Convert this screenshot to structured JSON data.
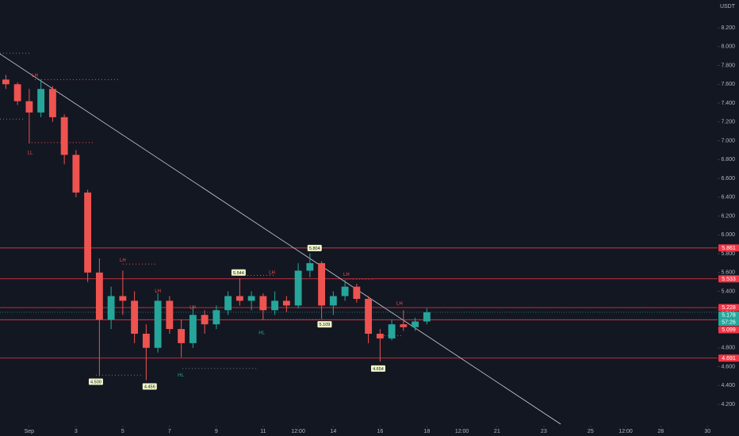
{
  "chart_data": {
    "type": "candlestick",
    "currency": "USDT",
    "x": [
      0,
      0.5,
      1,
      1.5,
      2,
      2.5,
      3,
      3.5,
      4,
      4.5,
      5,
      5.5,
      6,
      6.5,
      7,
      7.5,
      8,
      8.5,
      9,
      9.5,
      10,
      10.5,
      11,
      11.5,
      12,
      12.5,
      13,
      13.5,
      14,
      14.5,
      15,
      15.5,
      16,
      16.5,
      17,
      17.5,
      18
    ],
    "open": [
      7.65,
      7.6,
      7.42,
      7.3,
      7.55,
      7.25,
      6.85,
      6.45,
      5.6,
      5.1,
      5.35,
      5.3,
      4.95,
      4.8,
      5.3,
      5.0,
      4.85,
      5.15,
      5.05,
      5.2,
      5.35,
      5.3,
      5.35,
      5.2,
      5.3,
      5.25,
      5.62,
      5.7,
      5.25,
      5.35,
      5.45,
      5.32,
      4.95,
      4.9,
      5.05,
      5.02,
      5.08
    ],
    "high": [
      7.7,
      7.62,
      7.55,
      7.65,
      7.58,
      7.28,
      6.9,
      6.48,
      5.75,
      5.45,
      5.62,
      5.4,
      5.05,
      5.38,
      5.35,
      5.1,
      5.25,
      5.2,
      5.25,
      5.4,
      5.54,
      5.4,
      5.38,
      5.4,
      5.35,
      5.7,
      5.804,
      5.72,
      5.4,
      5.52,
      5.48,
      5.35,
      5.0,
      5.1,
      5.2,
      5.12,
      5.22
    ],
    "low": [
      7.55,
      7.38,
      6.97,
      7.25,
      7.2,
      6.75,
      6.4,
      5.5,
      4.5,
      5.0,
      5.15,
      4.85,
      4.456,
      4.75,
      4.95,
      4.7,
      4.8,
      4.95,
      5.0,
      5.15,
      5.25,
      5.2,
      5.1,
      5.15,
      5.18,
      5.22,
      5.55,
      5.109,
      5.15,
      5.3,
      5.28,
      4.85,
      4.654,
      4.88,
      4.98,
      4.98,
      5.05
    ],
    "close": [
      7.6,
      7.42,
      7.3,
      7.55,
      7.25,
      6.85,
      6.45,
      5.6,
      5.1,
      5.35,
      5.3,
      4.95,
      4.8,
      5.3,
      5.0,
      4.85,
      5.15,
      5.05,
      5.2,
      5.35,
      5.3,
      5.35,
      5.2,
      5.3,
      5.25,
      5.62,
      5.7,
      5.25,
      5.35,
      5.45,
      5.32,
      4.95,
      4.9,
      5.05,
      5.02,
      5.08,
      5.178
    ],
    "up_color": "#26a69a",
    "down_color": "#ef5350",
    "xlim": [
      -0.25,
      30.43
    ],
    "ylim": [
      3.99,
      8.495
    ],
    "xticks": [
      {
        "value": 1,
        "label": "Sep"
      },
      3,
      5,
      7,
      9,
      11,
      {
        "value": 12.5,
        "label": "12:00"
      },
      14,
      16,
      18,
      {
        "value": 19.5,
        "label": "12:00"
      },
      21,
      23,
      25,
      {
        "value": 26.5,
        "label": "12:00"
      },
      28,
      30
    ],
    "yticks": [
      {
        "value": 4.2,
        "label": "4.200"
      },
      {
        "value": 4.4,
        "label": "4.400"
      },
      {
        "value": 4.6,
        "label": "4.600"
      },
      {
        "value": 4.8,
        "label": "4.800"
      },
      {
        "value": 5.0,
        "label": "5.000"
      },
      {
        "value": 5.2,
        "label": "5.200"
      },
      {
        "value": 5.4,
        "label": "5.400"
      },
      {
        "value": 5.6,
        "label": "5.600"
      },
      {
        "value": 5.8,
        "label": "5.800"
      },
      {
        "value": 6.0,
        "label": "6.000"
      },
      {
        "value": 6.2,
        "label": "6.200"
      },
      {
        "value": 6.4,
        "label": "6.400"
      },
      {
        "value": 6.6,
        "label": "6.600"
      },
      {
        "value": 6.8,
        "label": "6.800"
      },
      {
        "value": 7.0,
        "label": "7.000"
      },
      {
        "value": 7.2,
        "label": "7.200"
      },
      {
        "value": 7.4,
        "label": "7.400"
      },
      {
        "value": 7.6,
        "label": "7.600"
      },
      {
        "value": 7.8,
        "label": "7.800"
      },
      {
        "value": 8.0,
        "label": "8.000"
      },
      {
        "value": 8.2,
        "label": "8.200"
      }
    ],
    "levels": [
      5.861,
      5.533,
      5.228,
      5.099,
      4.691
    ],
    "level_color": "#f23645",
    "current_price": 5.178,
    "current_color": "#26a69a",
    "countdown": "57:26",
    "trendline": {
      "x": [
        -0.25,
        23.72
      ],
      "y": [
        7.922,
        3.99
      ],
      "color": "#d1d4dc"
    },
    "dotted_lines": [
      {
        "x": [
          -0.25,
          1.1
        ],
        "y": 7.93,
        "color": "#787b86"
      },
      {
        "x": [
          1.24,
          4.9
        ],
        "y": 7.65,
        "color": "#ef5350"
      },
      {
        "x": [
          -0.25,
          0.77
        ],
        "y": 7.23,
        "color": "#787b86"
      },
      {
        "x": [
          1.1,
          3.75
        ],
        "y": 6.98,
        "color": "#ef5350"
      },
      {
        "x": [
          5.0,
          6.4
        ],
        "y": 5.69,
        "color": "#ef5350"
      },
      {
        "x": [
          3.85,
          5.85
        ],
        "y": 4.51,
        "color": "#787b86"
      },
      {
        "x": [
          7.55,
          10.77
        ],
        "y": 4.58,
        "color": "#787b86"
      },
      {
        "x": [
          9.92,
          11.45
        ],
        "y": 5.57,
        "color": "#ef5350"
      },
      {
        "x": [
          10.94,
          13.65
        ],
        "y": 5.1,
        "color": "#787b86"
      },
      {
        "x": [
          14.56,
          15.75
        ],
        "y": 5.53,
        "color": "#ef5350"
      },
      {
        "x": [
          15.92,
          17.0
        ],
        "y": 4.93,
        "color": "#787b86"
      }
    ],
    "price_tags": [
      {
        "text": "5.804",
        "x": 13.2,
        "y": 5.86
      },
      {
        "text": "5.544",
        "x": 9.95,
        "y": 5.6
      },
      {
        "text": "5.109",
        "x": 13.63,
        "y": 5.05
      },
      {
        "text": "4.500",
        "x": 3.85,
        "y": 4.44
      },
      {
        "text": "4.456",
        "x": 6.15,
        "y": 4.39
      },
      {
        "text": "4.654",
        "x": 15.92,
        "y": 4.58
      }
    ],
    "swing_labels": [
      {
        "text": "LH",
        "x": 1.24,
        "y": 7.69,
        "color": "#ef5350"
      },
      {
        "text": "LL",
        "x": 1.04,
        "y": 6.87,
        "color": "#ef5350"
      },
      {
        "text": "LH",
        "x": 5.0,
        "y": 5.73,
        "color": "#ef5350"
      },
      {
        "text": "LH",
        "x": 6.5,
        "y": 5.4,
        "color": "#ef5350"
      },
      {
        "text": "LH",
        "x": 7.99,
        "y": 5.23,
        "color": "#ef5350"
      },
      {
        "text": "LH",
        "x": 11.38,
        "y": 5.6,
        "color": "#ef5350"
      },
      {
        "text": "HL",
        "x": 7.48,
        "y": 4.51,
        "color": "#26a69a"
      },
      {
        "text": "HL",
        "x": 10.94,
        "y": 4.96,
        "color": "#26a69a"
      },
      {
        "text": "LH",
        "x": 14.56,
        "y": 5.58,
        "color": "#ef5350"
      },
      {
        "text": "LH",
        "x": 16.83,
        "y": 5.27,
        "color": "#ef5350"
      }
    ]
  }
}
